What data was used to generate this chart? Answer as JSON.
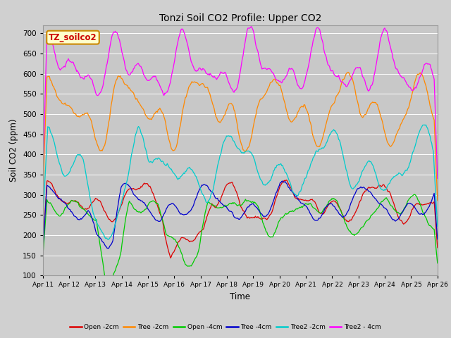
{
  "title": "Tonzi Soil CO2 Profile: Upper CO2",
  "xlabel": "Time",
  "ylabel": "Soil CO2 (ppm)",
  "ylim": [
    100,
    720
  ],
  "yticks": [
    100,
    150,
    200,
    250,
    300,
    350,
    400,
    450,
    500,
    550,
    600,
    650,
    700
  ],
  "fig_bg": "#d8d8d8",
  "axes_bg": "#cccccc",
  "grid_color": "#bbbbbb",
  "legend_label": "TZ_soilco2",
  "legend_box_facecolor": "#ffffcc",
  "legend_box_edgecolor": "#cc8800",
  "legend_text_color": "#cc0000",
  "series": [
    {
      "label": "Open -2cm",
      "color": "#dd0000"
    },
    {
      "label": "Tree -2cm",
      "color": "#ff8800"
    },
    {
      "label": "Open -4cm",
      "color": "#00cc00"
    },
    {
      "label": "Tree -4cm",
      "color": "#0000cc"
    },
    {
      "label": "Tree2 -2cm",
      "color": "#00cccc"
    },
    {
      "label": "Tree2 - 4cm",
      "color": "#ff00ff"
    }
  ],
  "xtick_labels": [
    "Apr 11",
    "Apr 12",
    "Apr 13",
    "Apr 14",
    "Apr 15",
    "Apr 16",
    "Apr 17",
    "Apr 18",
    "Apr 19",
    "Apr 20",
    "Apr 21",
    "Apr 22",
    "Apr 23",
    "Apr 24",
    "Apr 25",
    "Apr 26"
  ]
}
